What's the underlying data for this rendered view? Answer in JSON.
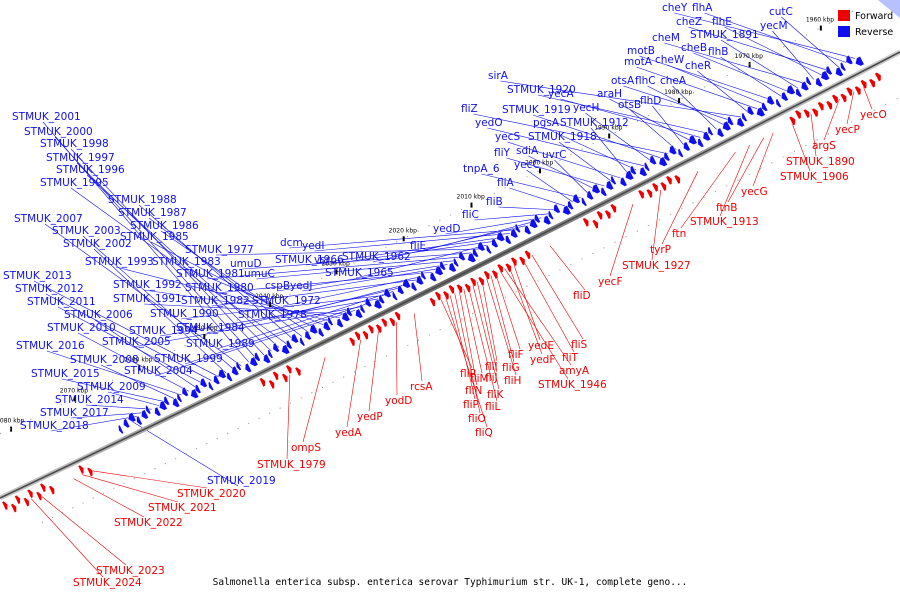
{
  "caption": "Salmonella enterica subsp. enterica serovar Typhimurium str. UK-1, complete geno...",
  "legend": {
    "forward": "Forward",
    "reverse": "Reverse"
  },
  "colors": {
    "forward": "#ee0000",
    "reverse": "#1010ee",
    "axis": "#7a7a7a"
  },
  "ticks": [
    "1960 kbp",
    "1970 kbp",
    "1980 kbp",
    "1990 kbp",
    "2000 kbp",
    "2010 kbp",
    "2020 kbp",
    "2030 kbp",
    "2040 kbp",
    "2050 kbp",
    "2060 kbp",
    "2070 kbp",
    "2080 kbp"
  ],
  "reverse_genes": [
    "cheY",
    "flhA",
    "cutC",
    "cheZ",
    "flhE",
    "yecM",
    "cheM",
    "STMUK_1891",
    "cheB",
    "flhB",
    "motB",
    "cheW",
    "motA",
    "cheR",
    "sirA",
    "otsA",
    "flhC",
    "cheA",
    "STMUK_1920",
    "yecA",
    "araH",
    "flhD",
    "otsB",
    "fliZ",
    "STMUK_1919",
    "yecH",
    "yedO",
    "pgsA",
    "STMUK_1912",
    "yecS",
    "STMUK_1918",
    "fliY",
    "sdiA",
    "uvrC",
    "tnpA_6",
    "yecC",
    "fliA",
    "fliB",
    "fliC",
    "yedD",
    "fliE",
    "STMUK_1962",
    "dcm",
    "yedI",
    "STMUK_1966",
    "vsr",
    "STMUK_1965",
    "STMUK_1977",
    "umuD",
    "STMUK_1981",
    "umuC",
    "cspB",
    "yedJ",
    "STMUK_1980",
    "STMUK_1972",
    "STMUK_1982",
    "STMUK_1978",
    "STMUK_1984",
    "STMUK_1989",
    "STMUK_1990",
    "STMUK_1994",
    "STMUK_1999",
    "STMUK_2005",
    "STMUK_2004",
    "STMUK_1991",
    "STMUK_1992",
    "STMUK_1993",
    "STMUK_1983",
    "STMUK_1985",
    "STMUK_1986",
    "STMUK_1987",
    "STMUK_1988",
    "STMUK_1995",
    "STMUK_1996",
    "STMUK_1997",
    "STMUK_1998",
    "STMUK_2000",
    "STMUK_2001",
    "STMUK_2007",
    "STMUK_2003",
    "STMUK_2002",
    "STMUK_2013",
    "STMUK_2012",
    "STMUK_2011",
    "STMUK_2006",
    "STMUK_2010",
    "STMUK_2016",
    "STMUK_2008",
    "STMUK_2015",
    "STMUK_2009",
    "STMUK_2014",
    "STMUK_2017",
    "STMUK_2018",
    "STMUK_2019"
  ],
  "forward_genes": [
    "yecO",
    "yecP",
    "argS",
    "STMUK_1890",
    "STMUK_1906",
    "yecG",
    "ftnB",
    "STMUK_1913",
    "ftn",
    "tyrP",
    "STMUK_1927",
    "yecF",
    "fliD",
    "fliS",
    "yedE",
    "fliT",
    "yedF",
    "amyA",
    "STMUK_1946",
    "fliF",
    "fliG",
    "fliH",
    "fliI",
    "fliJ",
    "fliK",
    "fliL",
    "fliM",
    "fliN",
    "fliO",
    "fliP",
    "fliQ",
    "fliR",
    "rcsA",
    "yodD",
    "yedP",
    "yedA",
    "ompS",
    "STMUK_1979",
    "STMUK_2020",
    "STMUK_2021",
    "STMUK_2022",
    "STMUK_2023",
    "STMUK_2024"
  ]
}
